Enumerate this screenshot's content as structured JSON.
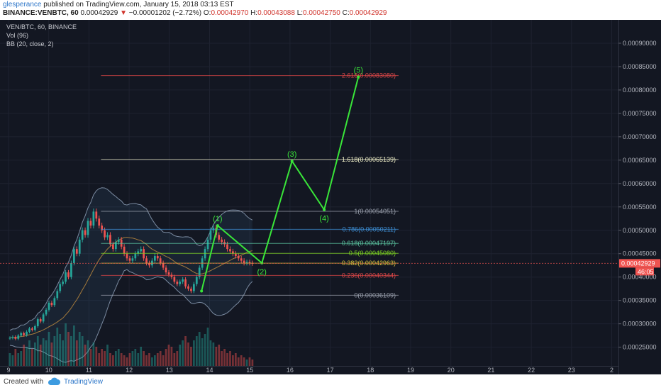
{
  "header": {
    "author": "glesperance",
    "published_text": "published on TradingView.com, January 15, 2018 03:13 EST",
    "symbol_line": "BINANCE:VENBTC, 60",
    "last_price": "0.00042929",
    "change_arrow": "▼",
    "change": "−0.00001202 (−2.72%)",
    "o_label": "O:",
    "o_value": "0.00042970",
    "h_label": "H:",
    "h_value": "0.00043088",
    "l_label": "L:",
    "l_value": "0.00042750",
    "c_label": "C:",
    "c_value": "0.00042929"
  },
  "legend": {
    "title": "VEN/BTC, 60, BINANCE",
    "volume": "Vol (96)",
    "bollinger": "BB (20, close, 2)"
  },
  "footer": {
    "created_with": "Created with",
    "brand": "TradingView"
  },
  "colors": {
    "background": "#131722",
    "up": "#26a69a",
    "down": "#ef5350",
    "wave": "#39e639",
    "price_label_bg": "#ef5350"
  },
  "chart_data": {
    "type": "candlestick",
    "title": "VEN/BTC, 60, BINANCE",
    "price_axis": {
      "ylim": [
        0.00021,
        0.00095
      ],
      "ticks": [
        "0.00090000",
        "0.00085000",
        "0.00080000",
        "0.00075000",
        "0.00070000",
        "0.00065000",
        "0.00060000",
        "0.00055000",
        "0.00050000",
        "0.00045000",
        "0.00040000",
        "0.00035000",
        "0.00030000",
        "0.00025000"
      ],
      "current_price_label": "0.00042929",
      "countdown_label": "46:05"
    },
    "time_axis": {
      "ticks": [
        "9",
        "10",
        "11",
        "12",
        "13",
        "14",
        "15",
        "16",
        "17",
        "18",
        "19",
        "20",
        "21",
        "22",
        "23",
        "2"
      ]
    },
    "fib_levels": [
      {
        "label": "2.618(0.00083080)",
        "value": 0.0008308,
        "color": "#e04848"
      },
      {
        "label": "1.618(0.00065139)",
        "value": 0.00065139,
        "color": "#f0f0c8"
      },
      {
        "label": "1(0.00054051)",
        "value": 0.00054051,
        "color": "#9aa0ad"
      },
      {
        "label": "0.786(0.00050211)",
        "value": 0.00050211,
        "color": "#3d8fd6"
      },
      {
        "label": "0.618(0.00047197)",
        "value": 0.00047197,
        "color": "#5bc4a0"
      },
      {
        "label": "0.5(0.00045080)",
        "value": 0.0004508,
        "color": "#7ed321"
      },
      {
        "label": "0.382(0.00042963)",
        "value": 0.00042963,
        "color": "#d4c23a"
      },
      {
        "label": "0.236(0.00040344)",
        "value": 0.00040344,
        "color": "#e04848"
      },
      {
        "label": "0(0.00036109)",
        "value": 0.00036109,
        "color": "#9aa0ad"
      }
    ],
    "wave_points": [
      {
        "day": 13.8,
        "price": 0.00037
      },
      {
        "day": 14.2,
        "price": 0.00051,
        "label": "(1)"
      },
      {
        "day": 15.3,
        "price": 0.00043,
        "label": "(2)"
      },
      {
        "day": 16.05,
        "price": 0.000648,
        "label": "(3)"
      },
      {
        "day": 16.85,
        "price": 0.000544,
        "label": "(4)"
      },
      {
        "day": 17.7,
        "price": 0.000828,
        "label": "(5)"
      }
    ],
    "candles_close": [
      0.00027,
      0.000272,
      0.000268,
      0.000275,
      0.00028,
      0.000276,
      0.000283,
      0.00029,
      0.000287,
      0.000295,
      0.00031,
      0.000305,
      0.00032,
      0.00033,
      0.000345,
      0.00034,
      0.000355,
      0.00037,
      0.000385,
      0.00039,
      0.00041,
      0.0004,
      0.00043,
      0.00046,
      0.00045,
      0.00048,
      0.0005,
      0.00049,
      0.00052,
      0.00051,
      0.00054,
      0.000525,
      0.00051,
      0.0005,
      0.000485,
      0.00049,
      0.00047,
      0.00046,
      0.000475,
      0.00048,
      0.000465,
      0.00045,
      0.00044,
      0.000435,
      0.00044,
      0.00045,
      0.000455,
      0.00046,
      0.00044,
      0.00043,
      0.000425,
      0.000435,
      0.000445,
      0.00044,
      0.00043,
      0.00042,
      0.00041,
      0.000405,
      0.0004,
      0.00039,
      0.000385,
      0.00039,
      0.000395,
      0.00038,
      0.000375,
      0.00037,
      0.000385,
      0.0004,
      0.00042,
      0.00044,
      0.00046,
      0.00048,
      0.0005,
      0.000505,
      0.00049,
      0.00048,
      0.000475,
      0.00047,
      0.00046,
      0.000455,
      0.00045,
      0.000445,
      0.00044,
      0.000435,
      0.00043,
      0.000432,
      0.00043,
      0.000429
    ],
    "volume": [
      0.3,
      0.25,
      0.4,
      0.3,
      0.35,
      0.5,
      0.45,
      0.6,
      0.4,
      0.55,
      0.7,
      0.5,
      0.65,
      0.6,
      0.8,
      0.55,
      0.7,
      0.9,
      0.75,
      0.6,
      1.0,
      0.8,
      0.7,
      0.95,
      0.6,
      0.8,
      0.7,
      0.5,
      0.6,
      0.4,
      0.55,
      0.45,
      0.3,
      0.4,
      0.35,
      0.5,
      0.3,
      0.25,
      0.35,
      0.4,
      0.3,
      0.25,
      0.2,
      0.3,
      0.35,
      0.4,
      0.3,
      0.45,
      0.35,
      0.25,
      0.3,
      0.2,
      0.25,
      0.3,
      0.35,
      0.25,
      0.4,
      0.5,
      0.45,
      0.3,
      0.35,
      0.5,
      0.6,
      0.7,
      0.55,
      0.45,
      0.6,
      0.7,
      0.8,
      0.65,
      0.75,
      0.9,
      0.6,
      0.55,
      0.45,
      0.5,
      0.35,
      0.4,
      0.3,
      0.35,
      0.25,
      0.3,
      0.2,
      0.25,
      0.2,
      0.15,
      0.2,
      0.15
    ]
  }
}
